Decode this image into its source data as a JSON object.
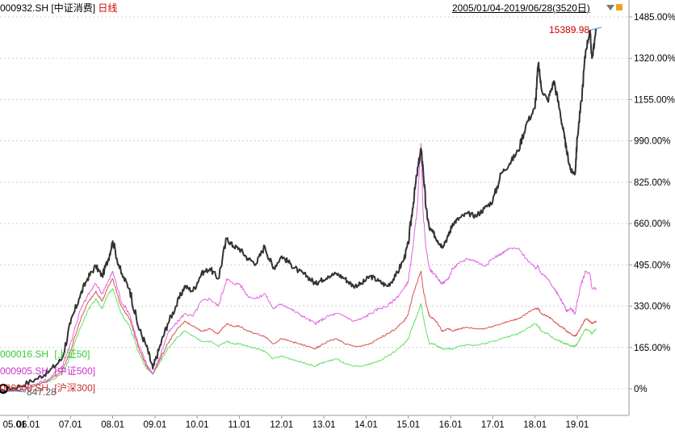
{
  "header": {
    "symbol": "000932.SH",
    "name": "[中证消费]",
    "period": "日线",
    "range": "2005/01/04-2019/06/28(3520日)"
  },
  "colors": {
    "consumer": "#333333",
    "csi500": "#e066e0",
    "csi300": "#d9534f",
    "sse50": "#66e066",
    "grid": "#d0d0d0",
    "max_label": "#cc0000",
    "legend_sse50": "#33cc33",
    "legend_csi500": "#cc33cc",
    "legend_csi300": "#cc3333"
  },
  "annotations": {
    "max_value": "15389.98",
    "start_value": "847.28"
  },
  "chart_data": {
    "type": "line",
    "title": "",
    "ylabel": "",
    "xlabel": "",
    "y_unit": "%",
    "ylim": [
      -30,
      1560
    ],
    "y_ticks": [
      "1485.00%",
      "1320.00%",
      "1155.00%",
      "990.00%",
      "825.00%",
      "660.00%",
      "495.00%",
      "330.00%",
      "165.00%",
      "0%"
    ],
    "y_tick_values": [
      1485,
      1320,
      1155,
      990,
      825,
      660,
      495,
      330,
      165,
      0
    ],
    "x_range": [
      2005.0,
      2019.5
    ],
    "x_ticks": [
      "05.01",
      "06.01",
      "07.01",
      "08.01",
      "09.01",
      "10.01",
      "11.01",
      "12.01",
      "13.01",
      "14.01",
      "15.01",
      "16.01",
      "17.01",
      "18.01",
      "19.01"
    ],
    "x_tick_values": [
      2005,
      2006,
      2007,
      2008,
      2009,
      2010,
      2011,
      2012,
      2013,
      2014,
      2015,
      2016,
      2017,
      2018,
      2019
    ],
    "legend": {
      "placement": "bottom-left"
    },
    "series": [
      {
        "name": "000932.SH [中证消费]",
        "x": [
          2005.0,
          2005.4,
          2005.8,
          2006.2,
          2006.5,
          2006.8,
          2007.0,
          2007.2,
          2007.4,
          2007.6,
          2007.75,
          2007.9,
          2008.0,
          2008.2,
          2008.4,
          2008.6,
          2008.8,
          2008.95,
          2009.1,
          2009.3,
          2009.5,
          2009.7,
          2009.9,
          2010.1,
          2010.3,
          2010.5,
          2010.7,
          2010.85,
          2011.0,
          2011.2,
          2011.4,
          2011.6,
          2011.8,
          2012.0,
          2012.2,
          2012.4,
          2012.6,
          2012.8,
          2012.9,
          2013.1,
          2013.3,
          2013.5,
          2013.7,
          2013.9,
          2014.1,
          2014.3,
          2014.5,
          2014.7,
          2014.9,
          2015.0,
          2015.1,
          2015.2,
          2015.3,
          2015.35,
          2015.42,
          2015.5,
          2015.6,
          2015.7,
          2015.8,
          2015.95,
          2016.05,
          2016.2,
          2016.4,
          2016.6,
          2016.8,
          2017.0,
          2017.2,
          2017.4,
          2017.6,
          2017.8,
          2018.0,
          2018.08,
          2018.15,
          2018.3,
          2018.45,
          2018.6,
          2018.7,
          2018.75,
          2018.85,
          2018.95,
          2019.0,
          2019.1,
          2019.2,
          2019.3,
          2019.35,
          2019.45
        ],
        "y": [
          0,
          -5,
          10,
          40,
          70,
          120,
          260,
          360,
          440,
          490,
          450,
          520,
          590,
          460,
          400,
          250,
          170,
          80,
          160,
          260,
          330,
          410,
          390,
          460,
          480,
          440,
          600,
          570,
          560,
          520,
          500,
          570,
          480,
          530,
          500,
          470,
          450,
          420,
          430,
          450,
          460,
          440,
          410,
          420,
          450,
          430,
          410,
          450,
          520,
          580,
          720,
          850,
          960,
          880,
          720,
          640,
          620,
          590,
          570,
          610,
          660,
          680,
          700,
          690,
          720,
          750,
          860,
          900,
          950,
          1060,
          1120,
          1300,
          1200,
          1150,
          1230,
          1100,
          1000,
          950,
          870,
          860,
          1000,
          1150,
          1350,
          1430,
          1320,
          1430
        ]
      },
      {
        "name": "000905.SH [中证500]",
        "x": [
          2005.0,
          2005.4,
          2005.8,
          2006.2,
          2006.5,
          2006.8,
          2007.0,
          2007.2,
          2007.4,
          2007.6,
          2007.75,
          2007.9,
          2008.0,
          2008.2,
          2008.4,
          2008.6,
          2008.8,
          2008.95,
          2009.1,
          2009.3,
          2009.5,
          2009.7,
          2009.9,
          2010.1,
          2010.3,
          2010.5,
          2010.7,
          2010.85,
          2011.0,
          2011.2,
          2011.4,
          2011.6,
          2011.8,
          2012.0,
          2012.2,
          2012.4,
          2012.6,
          2012.8,
          2012.9,
          2013.1,
          2013.3,
          2013.5,
          2013.7,
          2013.9,
          2014.1,
          2014.3,
          2014.5,
          2014.7,
          2014.9,
          2015.0,
          2015.1,
          2015.2,
          2015.3,
          2015.35,
          2015.42,
          2015.5,
          2015.6,
          2015.7,
          2015.8,
          2015.95,
          2016.05,
          2016.2,
          2016.4,
          2016.6,
          2016.8,
          2017.0,
          2017.2,
          2017.4,
          2017.6,
          2017.8,
          2018.0,
          2018.08,
          2018.15,
          2018.3,
          2018.45,
          2018.6,
          2018.7,
          2018.75,
          2018.85,
          2018.95,
          2019.0,
          2019.1,
          2019.2,
          2019.3,
          2019.35,
          2019.45
        ],
        "y": [
          0,
          -10,
          -5,
          20,
          40,
          90,
          180,
          300,
          370,
          420,
          380,
          430,
          470,
          350,
          300,
          180,
          100,
          60,
          120,
          220,
          260,
          300,
          290,
          350,
          360,
          330,
          440,
          420,
          420,
          370,
          360,
          380,
          320,
          340,
          320,
          300,
          280,
          260,
          270,
          290,
          300,
          290,
          270,
          280,
          300,
          320,
          330,
          360,
          400,
          430,
          550,
          700,
          980,
          700,
          560,
          480,
          460,
          440,
          420,
          440,
          480,
          500,
          520,
          510,
          490,
          520,
          540,
          560,
          560,
          520,
          480,
          490,
          460,
          440,
          400,
          360,
          330,
          310,
          320,
          300,
          350,
          420,
          470,
          460,
          400,
          400
        ]
      },
      {
        "name": "000300.SH [沪深300]",
        "x": [
          2005.0,
          2005.4,
          2005.8,
          2006.2,
          2006.5,
          2006.8,
          2007.0,
          2007.2,
          2007.4,
          2007.6,
          2007.75,
          2007.9,
          2008.0,
          2008.2,
          2008.4,
          2008.6,
          2008.8,
          2008.95,
          2009.1,
          2009.3,
          2009.5,
          2009.7,
          2009.9,
          2010.1,
          2010.3,
          2010.5,
          2010.7,
          2010.85,
          2011.0,
          2011.2,
          2011.4,
          2011.6,
          2011.8,
          2012.0,
          2012.2,
          2012.4,
          2012.6,
          2012.8,
          2012.9,
          2013.1,
          2013.3,
          2013.5,
          2013.7,
          2013.9,
          2014.1,
          2014.3,
          2014.5,
          2014.7,
          2014.9,
          2015.0,
          2015.1,
          2015.2,
          2015.3,
          2015.35,
          2015.42,
          2015.5,
          2015.6,
          2015.7,
          2015.8,
          2015.95,
          2016.05,
          2016.2,
          2016.4,
          2016.6,
          2016.8,
          2017.0,
          2017.2,
          2017.4,
          2017.6,
          2017.8,
          2018.0,
          2018.08,
          2018.15,
          2018.3,
          2018.45,
          2018.6,
          2018.7,
          2018.75,
          2018.85,
          2018.95,
          2019.0,
          2019.1,
          2019.2,
          2019.3,
          2019.35,
          2019.45
        ],
        "y": [
          0,
          -10,
          -5,
          15,
          35,
          70,
          150,
          260,
          340,
          390,
          350,
          410,
          440,
          330,
          280,
          170,
          90,
          60,
          110,
          180,
          230,
          270,
          250,
          230,
          240,
          220,
          260,
          250,
          250,
          230,
          220,
          210,
          180,
          200,
          190,
          180,
          170,
          160,
          170,
          190,
          200,
          180,
          170,
          170,
          180,
          200,
          220,
          240,
          270,
          300,
          370,
          420,
          470,
          400,
          340,
          290,
          280,
          260,
          230,
          240,
          230,
          240,
          245,
          240,
          240,
          250,
          260,
          270,
          280,
          300,
          320,
          320,
          300,
          290,
          270,
          250,
          240,
          230,
          220,
          210,
          220,
          250,
          280,
          270,
          260,
          270
        ]
      },
      {
        "name": "000016.SH [上证50]",
        "x": [
          2005.0,
          2005.4,
          2005.8,
          2006.2,
          2006.5,
          2006.8,
          2007.0,
          2007.2,
          2007.4,
          2007.6,
          2007.75,
          2007.9,
          2008.0,
          2008.2,
          2008.4,
          2008.6,
          2008.8,
          2008.95,
          2009.1,
          2009.3,
          2009.5,
          2009.7,
          2009.9,
          2010.1,
          2010.3,
          2010.5,
          2010.7,
          2010.85,
          2011.0,
          2011.2,
          2011.4,
          2011.6,
          2011.8,
          2012.0,
          2012.2,
          2012.4,
          2012.6,
          2012.8,
          2012.9,
          2013.1,
          2013.3,
          2013.5,
          2013.7,
          2013.9,
          2014.1,
          2014.3,
          2014.5,
          2014.7,
          2014.9,
          2015.0,
          2015.1,
          2015.2,
          2015.3,
          2015.35,
          2015.42,
          2015.5,
          2015.6,
          2015.7,
          2015.8,
          2015.95,
          2016.05,
          2016.2,
          2016.4,
          2016.6,
          2016.8,
          2017.0,
          2017.2,
          2017.4,
          2017.6,
          2017.8,
          2018.0,
          2018.08,
          2018.15,
          2018.3,
          2018.45,
          2018.6,
          2018.7,
          2018.75,
          2018.85,
          2018.95,
          2019.0,
          2019.1,
          2019.2,
          2019.3,
          2019.35,
          2019.45
        ],
        "y": [
          0,
          -10,
          -5,
          15,
          30,
          60,
          130,
          230,
          310,
          360,
          320,
          380,
          400,
          300,
          250,
          150,
          80,
          60,
          100,
          160,
          200,
          230,
          210,
          190,
          190,
          170,
          190,
          180,
          180,
          170,
          160,
          150,
          120,
          130,
          120,
          110,
          100,
          90,
          100,
          110,
          120,
          100,
          90,
          90,
          100,
          110,
          130,
          150,
          180,
          200,
          250,
          290,
          340,
          290,
          230,
          180,
          180,
          170,
          160,
          160,
          160,
          170,
          175,
          175,
          180,
          190,
          200,
          210,
          220,
          240,
          260,
          250,
          230,
          220,
          200,
          190,
          180,
          180,
          170,
          170,
          180,
          210,
          240,
          230,
          220,
          240
        ]
      }
    ]
  },
  "legend_items": [
    {
      "symbol": "000016.SH",
      "name": "[上证50]"
    },
    {
      "symbol": "000905.SH",
      "name": "[中证500]"
    },
    {
      "symbol": "000300.SH",
      "name": "[沪深300]"
    }
  ]
}
